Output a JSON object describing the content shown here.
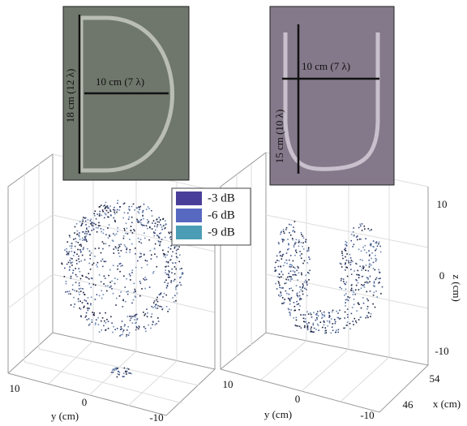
{
  "photos": [
    {
      "width_label": "10 cm (7 λ)",
      "height_label": "18 cm (12 λ)"
    },
    {
      "width_label": "10 cm (7 λ)",
      "height_label": "15 cm (10 λ)"
    }
  ],
  "legend": [
    {
      "label": "-3 dB",
      "color": "#4a3f98"
    },
    {
      "label": "-6 dB",
      "color": "#5668c0"
    },
    {
      "label": "-9 dB",
      "color": "#4b9db6"
    }
  ],
  "axes": {
    "y_label": "y (cm)",
    "x_label": "x (cm)",
    "z_label": "z (cm)",
    "y_ticks": [
      "10",
      "0",
      "-10"
    ],
    "x_ticks": [
      "54",
      "46"
    ],
    "z_ticks": [
      "10",
      "0",
      "-10"
    ]
  }
}
